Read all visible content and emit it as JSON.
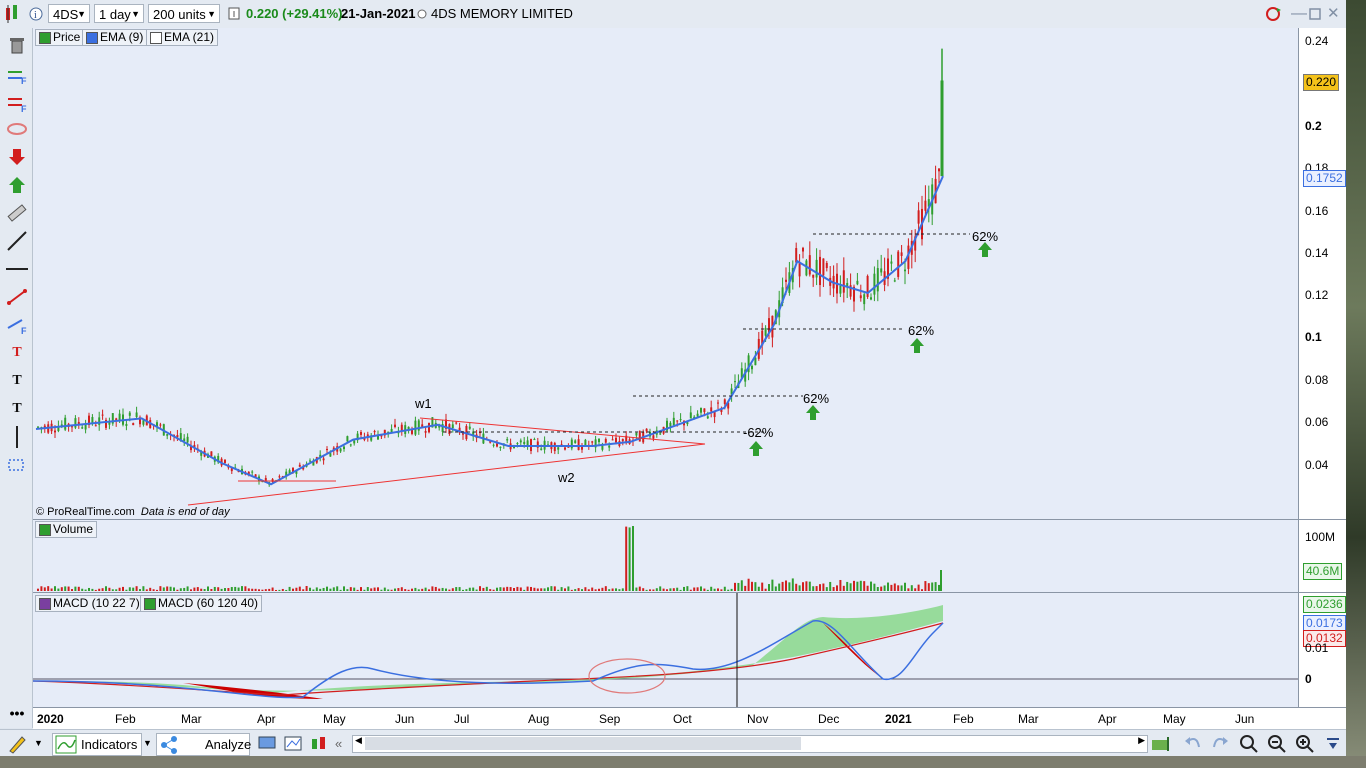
{
  "toolbar": {
    "symbol": "4DS",
    "interval": "1 day",
    "units": "200 units",
    "price": "0.220",
    "change": "(+29.41%)",
    "date": "21-Jan-2021",
    "name": "4DS MEMORY LIMITED"
  },
  "legends": {
    "price": "Price",
    "ema9": "EMA (9)",
    "ema21": "EMA (21)",
    "volume": "Volume",
    "macd1": "MACD (10 22 7)",
    "macd2": "MACD (60 120 40)"
  },
  "price_axis": [
    "0.24",
    "0.2",
    "0.18",
    "0.16",
    "0.14",
    "0.12",
    "0.1",
    "0.08",
    "0.06",
    "0.04"
  ],
  "price_tags": {
    "last": "0.220",
    "ema": "0.1752"
  },
  "volume_axis": {
    "top": "100M",
    "tag": "40.6M"
  },
  "macd_axis": {
    "tag1": "0.0236",
    "tag2": "0.0173",
    "tag3": "0.0132",
    "label1": "0.01",
    "label0": "0"
  },
  "annotations": {
    "w1": "w1",
    "w2": "w2",
    "p1": "-62%",
    "p2": "62%",
    "p3": "62%",
    "p4": "62%"
  },
  "credit": "© ProRealTime.com",
  "credit_note": "Data is end of day",
  "x_axis": [
    "2020",
    "Feb",
    "Mar",
    "Apr",
    "May",
    "Jun",
    "Jul",
    "Aug",
    "Sep",
    "Oct",
    "Nov",
    "Dec",
    "2021",
    "Feb",
    "Mar",
    "Apr",
    "May",
    "Jun"
  ],
  "bottom": {
    "indicators": "Indicators",
    "analyze": "Analyze"
  },
  "colors": {
    "up": "#2f9e2f",
    "down": "#d21e1e",
    "ema": "#3b6fe0",
    "panel_bg": "#e6ecf8"
  },
  "chart_data": {
    "type": "line",
    "series": [
      {
        "name": "EMA (9)",
        "x": [
          "2020-01-01",
          "2020-02-15",
          "2020-03-20",
          "2020-04-10",
          "2020-05-15",
          "2020-06-20",
          "2020-07-20",
          "2020-08-25",
          "2020-09-10",
          "2020-10-20",
          "2020-11-10",
          "2020-11-20",
          "2020-12-05",
          "2020-12-20",
          "2021-01-05",
          "2021-01-21"
        ],
        "values": [
          0.056,
          0.061,
          0.04,
          0.03,
          0.051,
          0.058,
          0.048,
          0.048,
          0.05,
          0.066,
          0.105,
          0.135,
          0.125,
          0.12,
          0.135,
          0.175
        ]
      }
    ],
    "ylim": [
      0.02,
      0.24
    ]
  }
}
